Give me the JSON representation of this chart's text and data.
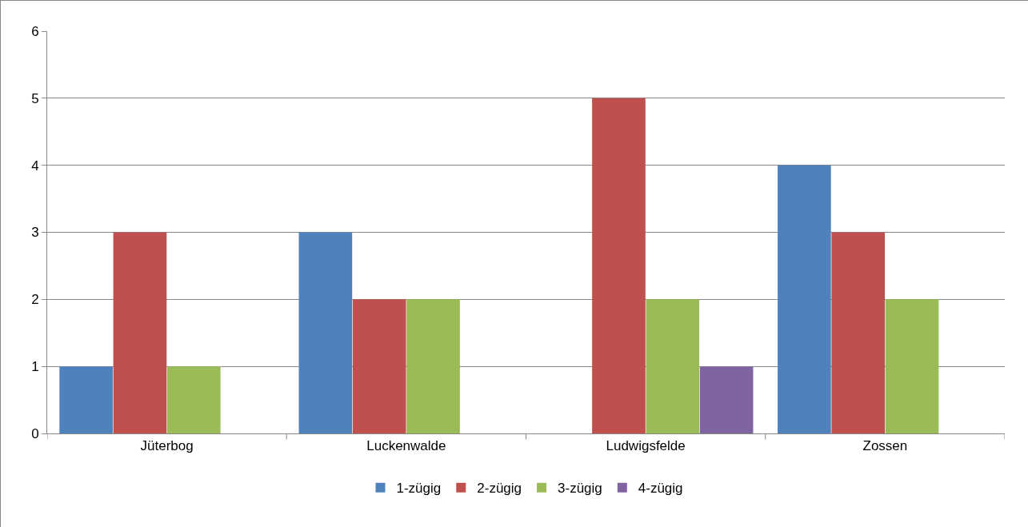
{
  "chart_data": {
    "type": "bar",
    "categories": [
      "Jüterbog",
      "Luckenwalde",
      "Ludwigsfelde",
      "Zossen"
    ],
    "series": [
      {
        "name": "1-zügig",
        "color": "#4f81bd",
        "values": [
          1,
          3,
          null,
          4
        ]
      },
      {
        "name": "2-zügig",
        "color": "#c0504d",
        "values": [
          3,
          2,
          5,
          3
        ]
      },
      {
        "name": "3-zügig",
        "color": "#9bbb59",
        "values": [
          1,
          2,
          2,
          2
        ]
      },
      {
        "name": "4-zügig",
        "color": "#8064a2",
        "values": [
          null,
          null,
          1,
          null
        ]
      }
    ],
    "ylim": [
      0,
      6
    ],
    "yticks": [
      0,
      1,
      2,
      3,
      4,
      5,
      6
    ],
    "grid": "y",
    "legend": "bottom"
  }
}
